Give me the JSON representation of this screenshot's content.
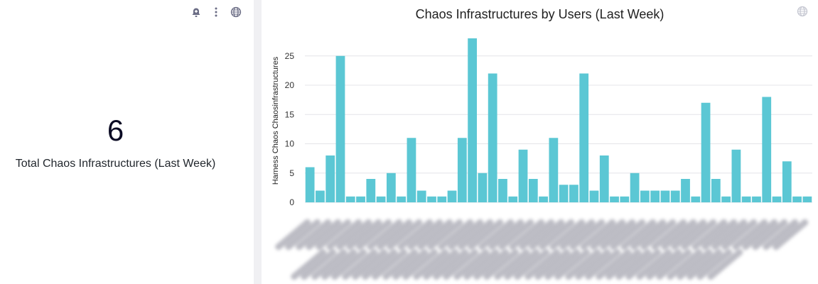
{
  "kpi": {
    "value": "6",
    "label": "Total Chaos Infrastructures (Last Week)"
  },
  "icons": {
    "alert": "bell-plus-icon",
    "menu": "kebab-menu-icon",
    "globe": "globe-icon"
  },
  "colors": {
    "bar": "#5bc7d4",
    "grid": "#e4e4e8",
    "axis_text": "#333333"
  },
  "chart_data": {
    "type": "bar",
    "title": "Chaos Infrastructures by Users (Last Week)",
    "ylabel": "Harness Chaos Chaosinfrastructures",
    "xlabel": "",
    "ylim": [
      0,
      28
    ],
    "yticks": [
      0,
      5,
      10,
      15,
      20,
      25
    ],
    "grid": true,
    "x_tick_labels_obscured": true,
    "values": [
      6,
      2,
      8,
      25,
      1,
      1,
      4,
      1,
      5,
      1,
      11,
      2,
      1,
      1,
      2,
      11,
      28,
      5,
      22,
      4,
      1,
      9,
      4,
      1,
      11,
      3,
      3,
      22,
      2,
      8,
      1,
      1,
      5,
      2,
      2,
      2,
      2,
      4,
      1,
      17,
      4,
      1,
      9,
      1,
      1,
      18,
      1,
      7,
      1,
      1
    ]
  }
}
